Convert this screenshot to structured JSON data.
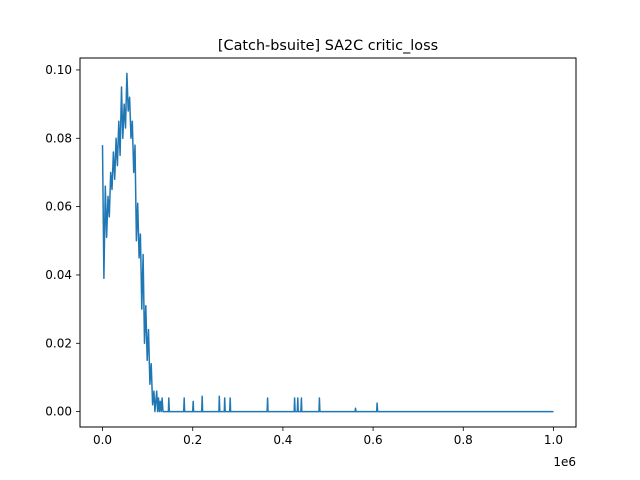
{
  "chart_data": {
    "type": "line",
    "title": "[Catch-bsuite] SA2C critic_loss",
    "xlabel": "",
    "ylabel": "",
    "x_offset_label": "1e6",
    "xlim": [
      -50000,
      1050000
    ],
    "ylim": [
      -0.0045,
      0.1035
    ],
    "grid": false,
    "x_ticks": [
      0,
      200000,
      400000,
      600000,
      800000,
      1000000
    ],
    "x_tick_labels": [
      "0.0",
      "0.2",
      "0.4",
      "0.6",
      "0.8",
      "1.0"
    ],
    "y_ticks": [
      0.0,
      0.02,
      0.04,
      0.06,
      0.08,
      0.1
    ],
    "y_tick_labels": [
      "0.00",
      "0.02",
      "0.04",
      "0.06",
      "0.08",
      "0.10"
    ],
    "line_color": "#1f77b4",
    "series": [
      {
        "x": [
          0,
          3000,
          6000,
          9000,
          12000,
          15000,
          18000,
          21000,
          24000,
          27000,
          30000,
          33000,
          36000,
          39000,
          42000,
          45000,
          48000,
          51000,
          54000,
          57000,
          60000,
          63000,
          66000,
          69000,
          72000,
          75000,
          78000,
          81000,
          84000,
          87000,
          90000,
          93000,
          96000,
          99000,
          102000,
          105000,
          108000,
          111000,
          114000,
          116000,
          120000,
          122000,
          124000,
          126000,
          128000,
          130000,
          132000,
          134000,
          146000,
          147000,
          148000,
          180000,
          181000,
          182000,
          200000,
          201000,
          202000,
          220000,
          221000,
          222000,
          258000,
          259000,
          260000,
          270000,
          271000,
          272000,
          282000,
          283000,
          284000,
          365000,
          366000,
          367000,
          425000,
          426000,
          427000,
          432000,
          433000,
          434000,
          440000,
          441000,
          442000,
          480000,
          481000,
          482000,
          560000,
          561000,
          562000,
          608000,
          609000,
          610000,
          1000000
        ],
        "y": [
          0.078,
          0.039,
          0.066,
          0.051,
          0.063,
          0.057,
          0.07,
          0.065,
          0.076,
          0.068,
          0.08,
          0.072,
          0.085,
          0.075,
          0.095,
          0.08,
          0.09,
          0.083,
          0.099,
          0.088,
          0.092,
          0.08,
          0.085,
          0.07,
          0.078,
          0.05,
          0.061,
          0.045,
          0.052,
          0.03,
          0.046,
          0.02,
          0.031,
          0.015,
          0.024,
          0.008,
          0.014,
          0.002,
          0.006,
          0.0,
          0.006,
          0.0,
          0.004,
          0.0,
          0.003,
          0.0,
          0.004,
          0.0,
          0.0,
          0.004,
          0.0,
          0.0,
          0.004,
          0.0,
          0.0,
          0.003,
          0.0,
          0.0,
          0.0045,
          0.0,
          0.0,
          0.0045,
          0.0,
          0.0,
          0.004,
          0.0,
          0.0,
          0.004,
          0.0,
          0.0,
          0.004,
          0.0,
          0.0,
          0.004,
          0.0,
          0.0,
          0.004,
          0.0,
          0.0,
          0.004,
          0.0,
          0.0,
          0.004,
          0.0,
          0.0,
          0.001,
          0.0,
          0.0,
          0.0025,
          0.0,
          0.0
        ]
      }
    ]
  }
}
